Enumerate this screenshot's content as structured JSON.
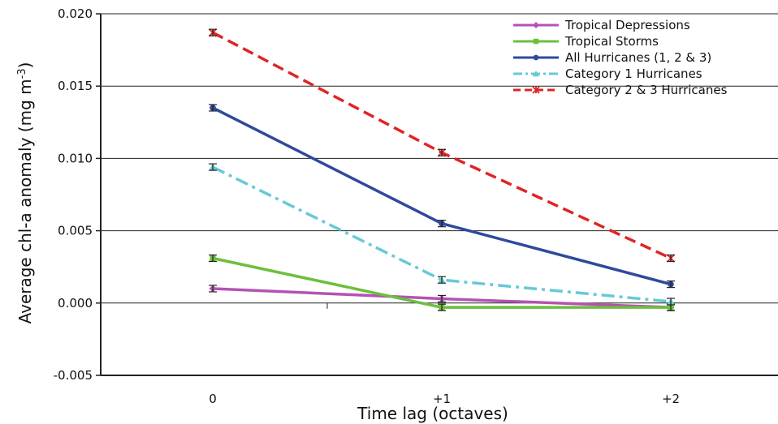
{
  "chart_data": {
    "type": "line",
    "xlabel": "Time lag (octaves)",
    "ylabel_main": "Average chl-a anomaly (mg m",
    "ylabel_sup": "-3",
    "ylabel_close": ")",
    "categories": [
      "0",
      "+1",
      "+2"
    ],
    "ylim": [
      -0.005,
      0.02
    ],
    "yticks": [
      -0.005,
      0.0,
      0.005,
      0.01,
      0.015,
      0.02
    ],
    "ytick_labels": [
      "-0.005",
      "0.000",
      "0.005",
      "0.010",
      "0.015",
      "0.020"
    ],
    "grid": true,
    "legend_position": "top-right",
    "series": [
      {
        "name": "Tropical Depressions",
        "values": [
          0.001,
          0.0003,
          -0.0003
        ],
        "color": "#b452b4",
        "marker": "diamond",
        "dash": "solid"
      },
      {
        "name": "Tropical Storms",
        "values": [
          0.0031,
          -0.0003,
          -0.0003
        ],
        "color": "#6cbf3e",
        "marker": "square",
        "dash": "solid"
      },
      {
        "name": "All Hurricanes (1, 2 & 3)",
        "values": [
          0.0135,
          0.0055,
          0.0013
        ],
        "color": "#2f4a9c",
        "marker": "circle",
        "dash": "solid"
      },
      {
        "name": "Category 1 Hurricanes",
        "values": [
          0.0094,
          0.0016,
          0.0001
        ],
        "color": "#67c9d8",
        "marker": "triangle",
        "dash": "dashdot"
      },
      {
        "name": "Category 2 & 3 Hurricanes",
        "values": [
          0.0187,
          0.0104,
          0.0031
        ],
        "color": "#e02424",
        "marker": "star",
        "dash": "dashed"
      }
    ]
  }
}
